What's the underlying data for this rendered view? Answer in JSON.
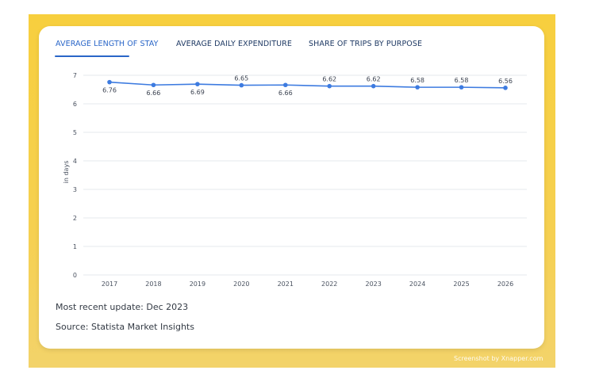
{
  "tabs": [
    {
      "label": "AVERAGE LENGTH OF STAY",
      "active": true
    },
    {
      "label": "AVERAGE DAILY EXPENDITURE",
      "active": false
    },
    {
      "label": "SHARE OF TRIPS BY PURPOSE",
      "active": false
    }
  ],
  "chart_data": {
    "type": "line",
    "title": "",
    "xlabel": "",
    "ylabel": "in days",
    "x": [
      "2017",
      "2018",
      "2019",
      "2020",
      "2021",
      "2022",
      "2023",
      "2024",
      "2025",
      "2026"
    ],
    "series": [
      {
        "values": [
          6.76,
          6.66,
          6.69,
          6.65,
          6.66,
          6.62,
          6.62,
          6.58,
          6.58,
          6.56
        ]
      }
    ],
    "data_labels": [
      "6.76",
      "6.66",
      "6.69",
      "6.65",
      "6.66",
      "6.62",
      "6.62",
      "6.58",
      "6.58",
      "6.56"
    ],
    "ylim": [
      0,
      7
    ],
    "yticks": [
      "0",
      "1",
      "2",
      "3",
      "4",
      "5",
      "6",
      "7"
    ],
    "grid": true,
    "line_color": "#3d7be0"
  },
  "footer": {
    "update": "Most recent update: Dec 2023",
    "source": "Source: Statista Market Insights"
  },
  "watermark": "Screenshot by Xnapper.com"
}
